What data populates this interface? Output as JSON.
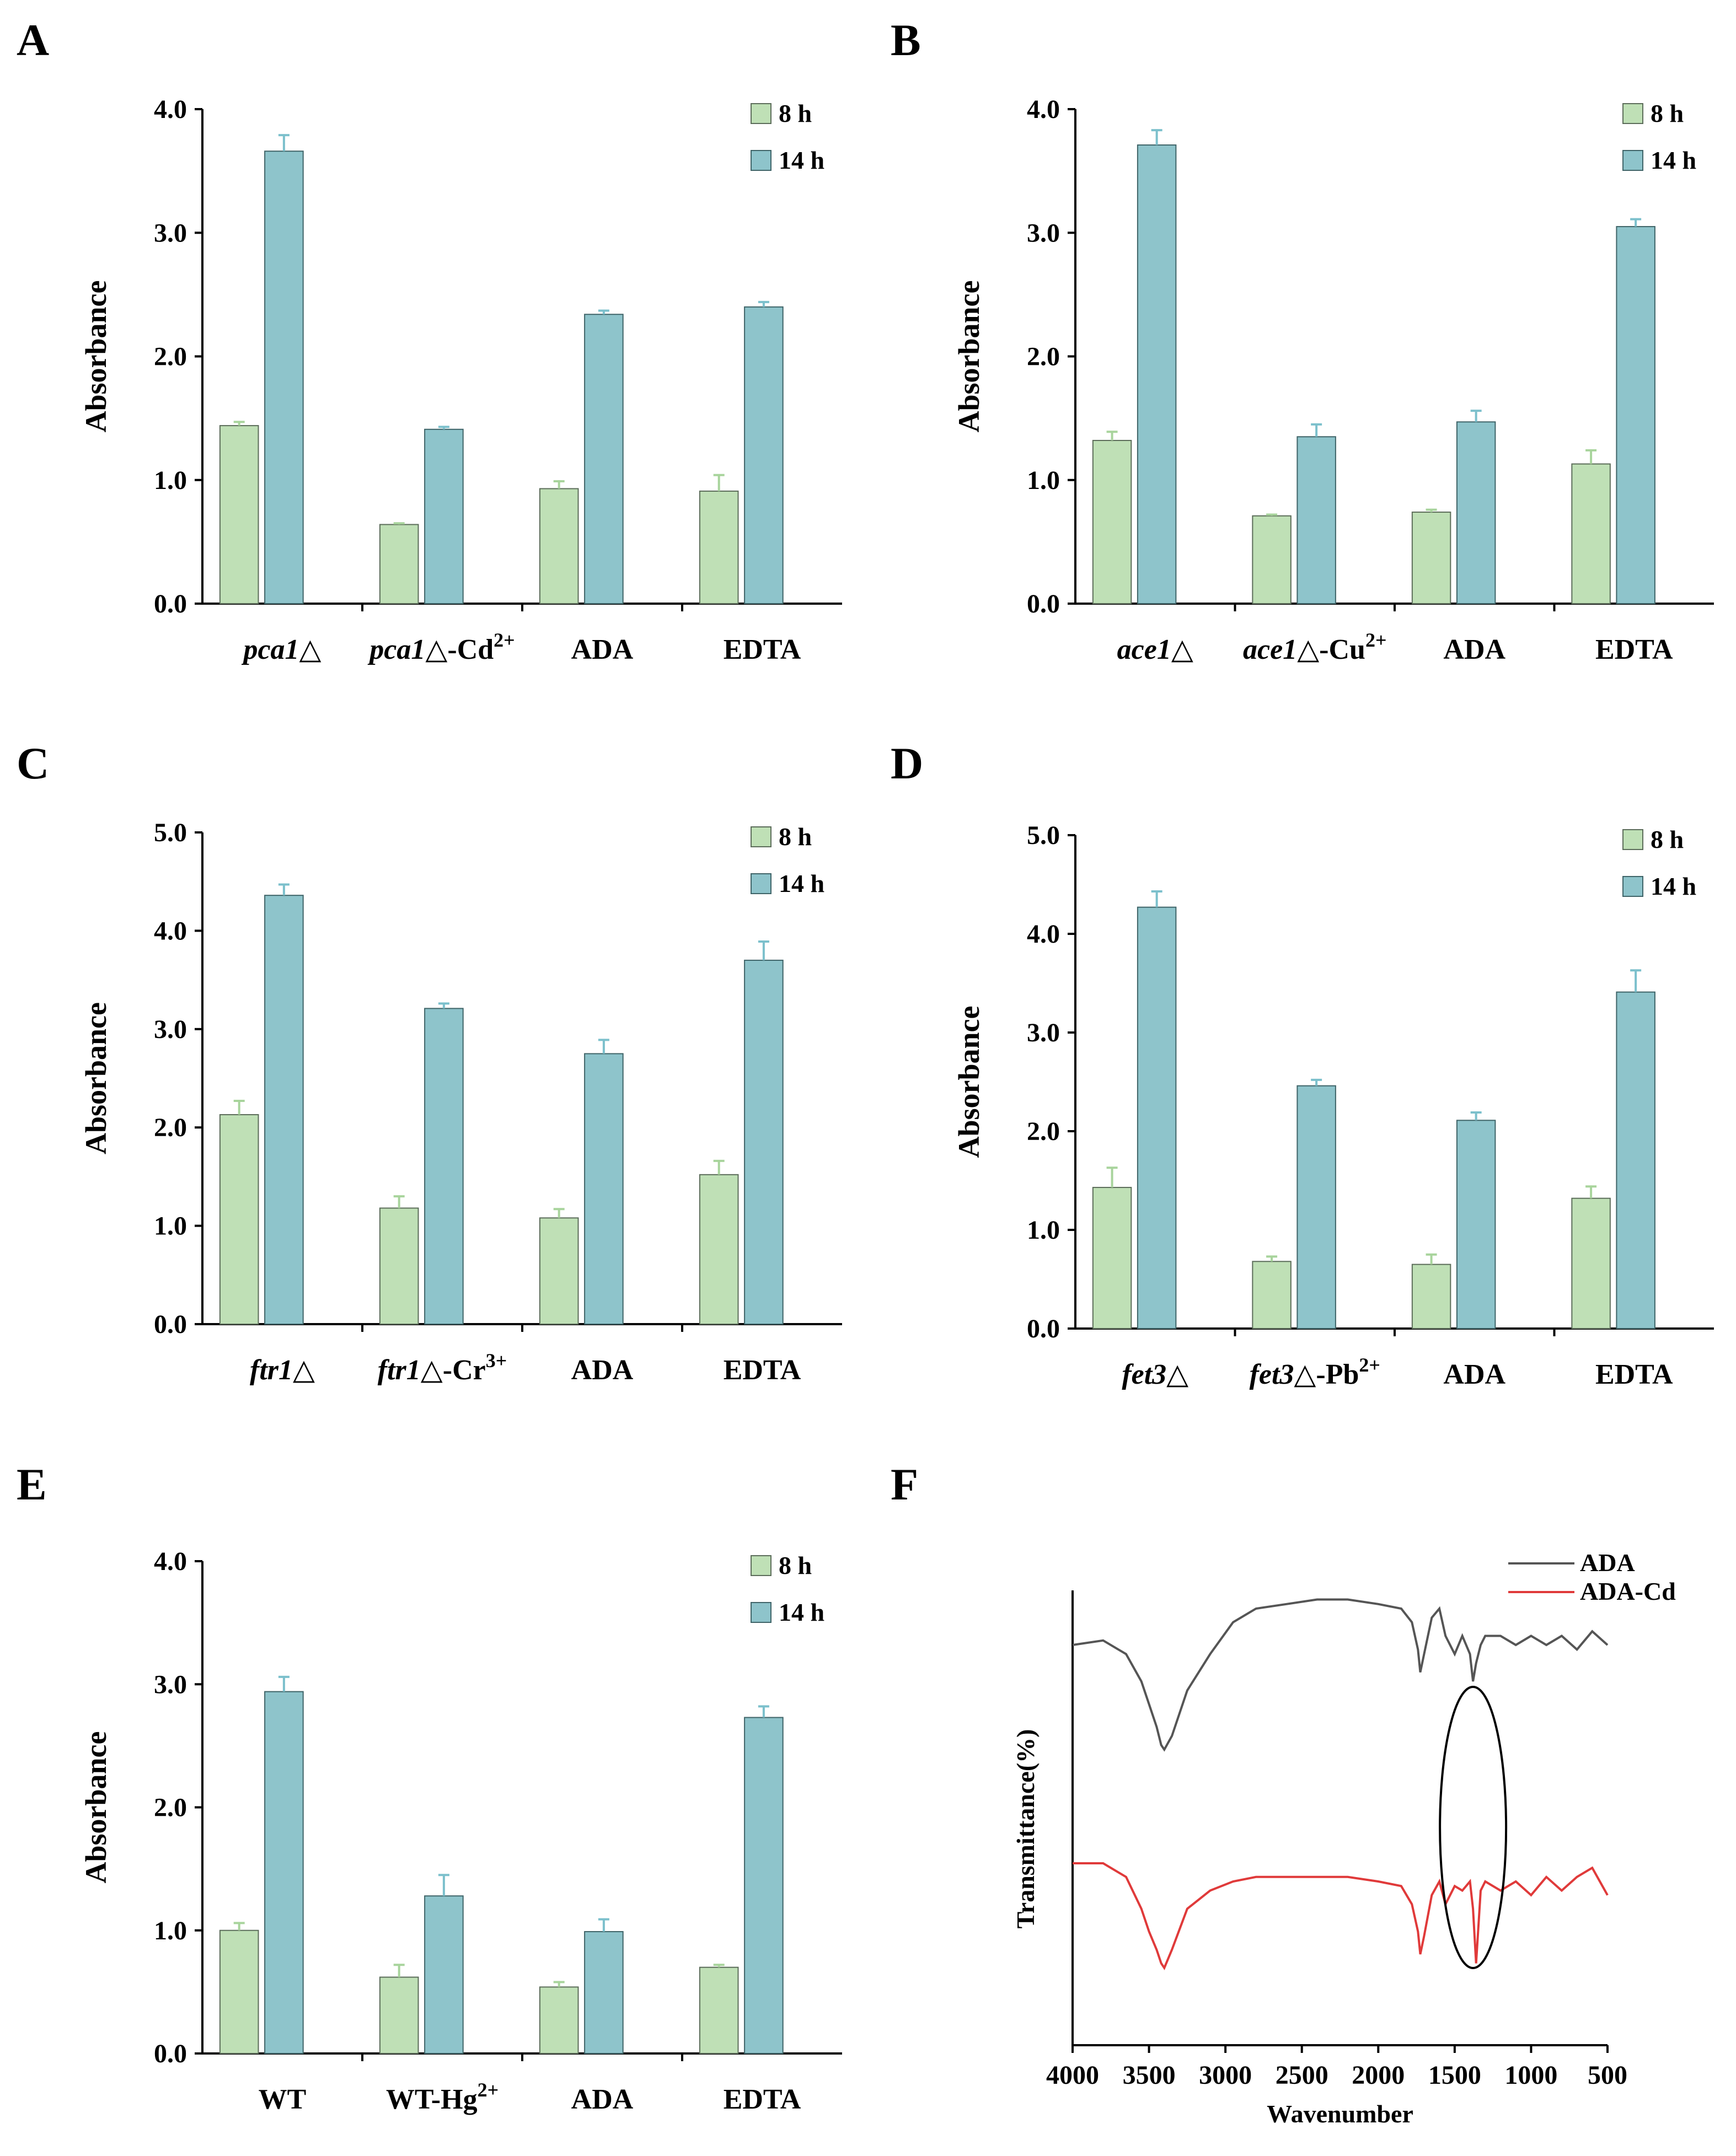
{
  "panels": [
    {
      "letter": "A",
      "chart_data": {
        "type": "bar",
        "ylabel": "Absorbance",
        "ylim": [
          0,
          4
        ],
        "yticks": [
          "0.0",
          "1.0",
          "2.0",
          "3.0",
          "4.0"
        ],
        "categories": [
          {
            "italic": "pca1",
            "suffix": "△",
            "ion": "",
            "charge": ""
          },
          {
            "italic": "pca1",
            "suffix": "△-Cd",
            "ion": "Cd",
            "charge": "2+"
          },
          {
            "italic": "",
            "suffix": "ADA",
            "ion": "",
            "charge": ""
          },
          {
            "italic": "",
            "suffix": "EDTA",
            "ion": "",
            "charge": ""
          }
        ],
        "series": [
          {
            "name": "8 h",
            "values": [
              1.44,
              0.64,
              0.93,
              0.91
            ],
            "errors": [
              0.03,
              0.01,
              0.06,
              0.13
            ]
          },
          {
            "name": "14 h",
            "values": [
              3.66,
              1.41,
              2.34,
              2.4
            ],
            "errors": [
              0.13,
              0.02,
              0.03,
              0.04
            ]
          }
        ],
        "legend_position": "top-right"
      }
    },
    {
      "letter": "B",
      "chart_data": {
        "type": "bar",
        "ylabel": "Absorbance",
        "ylim": [
          0,
          4
        ],
        "yticks": [
          "0.0",
          "1.0",
          "2.0",
          "3.0",
          "4.0"
        ],
        "categories": [
          {
            "italic": "ace1",
            "suffix": "△",
            "ion": "",
            "charge": ""
          },
          {
            "italic": "ace1",
            "suffix": "△-Cu",
            "ion": "Cu",
            "charge": "2+"
          },
          {
            "italic": "",
            "suffix": "ADA",
            "ion": "",
            "charge": ""
          },
          {
            "italic": "",
            "suffix": "EDTA",
            "ion": "",
            "charge": ""
          }
        ],
        "series": [
          {
            "name": "8 h",
            "values": [
              1.32,
              0.71,
              0.74,
              1.13
            ],
            "errors": [
              0.07,
              0.01,
              0.02,
              0.11
            ]
          },
          {
            "name": "14 h",
            "values": [
              3.71,
              1.35,
              1.47,
              3.05
            ],
            "errors": [
              0.12,
              0.1,
              0.09,
              0.06
            ]
          }
        ],
        "legend_position": "top-right"
      }
    },
    {
      "letter": "C",
      "chart_data": {
        "type": "bar",
        "ylabel": "Absorbance",
        "ylim": [
          0,
          5
        ],
        "yticks": [
          "0.0",
          "1.0",
          "2.0",
          "3.0",
          "4.0",
          "5.0"
        ],
        "categories": [
          {
            "italic": "ftr1",
            "suffix": "△",
            "ion": "",
            "charge": ""
          },
          {
            "italic": "ftr1",
            "suffix": "△-Cr",
            "ion": "Cr",
            "charge": "3+"
          },
          {
            "italic": "",
            "suffix": "ADA",
            "ion": "",
            "charge": ""
          },
          {
            "italic": "",
            "suffix": "EDTA",
            "ion": "",
            "charge": ""
          }
        ],
        "series": [
          {
            "name": "8 h",
            "values": [
              2.13,
              1.18,
              1.08,
              1.52
            ],
            "errors": [
              0.14,
              0.12,
              0.09,
              0.14
            ]
          },
          {
            "name": "14 h",
            "values": [
              4.36,
              3.21,
              2.75,
              3.7
            ],
            "errors": [
              0.11,
              0.05,
              0.14,
              0.19
            ]
          }
        ],
        "legend_position": "top-right"
      }
    },
    {
      "letter": "D",
      "chart_data": {
        "type": "bar",
        "ylabel": "Absorbance",
        "ylim": [
          0,
          5
        ],
        "yticks": [
          "0.0",
          "1.0",
          "2.0",
          "3.0",
          "4.0",
          "5.0"
        ],
        "categories": [
          {
            "italic": "fet3",
            "suffix": "△",
            "ion": "",
            "charge": ""
          },
          {
            "italic": "fet3",
            "suffix": "△-Pb",
            "ion": "Pb",
            "charge": "2+"
          },
          {
            "italic": "",
            "suffix": "ADA",
            "ion": "",
            "charge": ""
          },
          {
            "italic": "",
            "suffix": "EDTA",
            "ion": "",
            "charge": ""
          }
        ],
        "series": [
          {
            "name": "8 h",
            "values": [
              1.43,
              0.68,
              0.65,
              1.32
            ],
            "errors": [
              0.2,
              0.05,
              0.1,
              0.12
            ]
          },
          {
            "name": "14 h",
            "values": [
              4.27,
              2.46,
              2.11,
              3.41
            ],
            "errors": [
              0.16,
              0.06,
              0.08,
              0.22
            ]
          }
        ],
        "legend_position": "top-right"
      }
    },
    {
      "letter": "E",
      "chart_data": {
        "type": "bar",
        "ylabel": "Absorbance",
        "ylim": [
          0,
          4
        ],
        "yticks": [
          "0.0",
          "1.0",
          "2.0",
          "3.0",
          "4.0"
        ],
        "categories": [
          {
            "italic": "",
            "suffix": "WT",
            "ion": "",
            "charge": ""
          },
          {
            "italic": "",
            "suffix": "WT-Hg",
            "ion": "Hg",
            "charge": "2+"
          },
          {
            "italic": "",
            "suffix": "ADA",
            "ion": "",
            "charge": ""
          },
          {
            "italic": "",
            "suffix": "EDTA",
            "ion": "",
            "charge": ""
          }
        ],
        "series": [
          {
            "name": "8 h",
            "values": [
              1.0,
              0.62,
              0.54,
              0.7
            ],
            "errors": [
              0.06,
              0.1,
              0.04,
              0.02
            ]
          },
          {
            "name": "14 h",
            "values": [
              2.94,
              1.28,
              0.99,
              2.73
            ],
            "errors": [
              0.12,
              0.17,
              0.1,
              0.09
            ]
          }
        ],
        "legend_position": "top-right"
      }
    }
  ],
  "ftir": {
    "letter": "F",
    "chart_data": {
      "type": "line",
      "xlabel": "Wavenumber",
      "ylabel": "Transmittance(%)",
      "xlim": [
        4000,
        500
      ],
      "xticks": [
        "4000",
        "3500",
        "3000",
        "2500",
        "2000",
        "1500",
        "1000",
        "500"
      ],
      "series": [
        {
          "name": "ADA",
          "color": "#555555",
          "x": [
            4000,
            3800,
            3650,
            3550,
            3500,
            3450,
            3420,
            3400,
            3350,
            3250,
            3100,
            2950,
            2800,
            2600,
            2400,
            2200,
            2000,
            1850,
            1780,
            1740,
            1725,
            1700,
            1650,
            1600,
            1560,
            1500,
            1450,
            1400,
            1380,
            1360,
            1330,
            1300,
            1200,
            1100,
            1000,
            900,
            800,
            700,
            600,
            500
          ],
          "y": [
            0.88,
            0.89,
            0.86,
            0.8,
            0.75,
            0.7,
            0.66,
            0.65,
            0.68,
            0.78,
            0.86,
            0.93,
            0.96,
            0.97,
            0.98,
            0.98,
            0.97,
            0.96,
            0.93,
            0.87,
            0.82,
            0.86,
            0.94,
            0.96,
            0.9,
            0.86,
            0.9,
            0.86,
            0.8,
            0.84,
            0.88,
            0.9,
            0.9,
            0.88,
            0.9,
            0.88,
            0.9,
            0.87,
            0.91,
            0.88
          ]
        },
        {
          "name": "ADA-Cd",
          "color": "#e03a3a",
          "x": [
            4000,
            3800,
            3650,
            3550,
            3500,
            3450,
            3420,
            3400,
            3350,
            3250,
            3100,
            2950,
            2800,
            2600,
            2400,
            2200,
            2000,
            1850,
            1780,
            1740,
            1725,
            1700,
            1650,
            1600,
            1560,
            1500,
            1450,
            1400,
            1380,
            1360,
            1330,
            1300,
            1200,
            1100,
            1000,
            900,
            800,
            700,
            600,
            500
          ],
          "y": [
            0.4,
            0.4,
            0.37,
            0.3,
            0.25,
            0.21,
            0.18,
            0.17,
            0.21,
            0.3,
            0.34,
            0.36,
            0.37,
            0.37,
            0.37,
            0.37,
            0.36,
            0.35,
            0.31,
            0.25,
            0.2,
            0.24,
            0.33,
            0.36,
            0.31,
            0.35,
            0.34,
            0.36,
            0.3,
            0.18,
            0.34,
            0.36,
            0.34,
            0.36,
            0.33,
            0.37,
            0.34,
            0.37,
            0.39,
            0.33
          ]
        }
      ],
      "annotation": "ellipse around 1380 cm-1 peak",
      "legend_position": "top-right"
    }
  }
}
